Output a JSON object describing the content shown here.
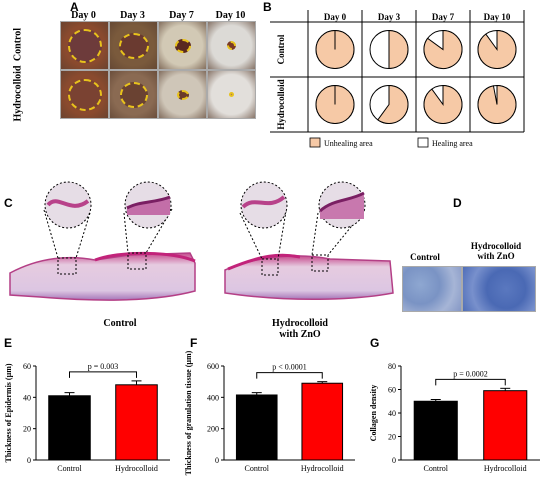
{
  "panel_letters": {
    "a": "A",
    "b": "B",
    "c": "C",
    "d": "D",
    "e": "E",
    "f": "F",
    "g": "G"
  },
  "days": [
    "Day 0",
    "Day 3",
    "Day 7",
    "Day 10"
  ],
  "groups": [
    "Control",
    "Hydrocolloid"
  ],
  "colors": {
    "unhealing": "#f6c9a6",
    "healing": "#ffffff",
    "control_bar": "#000000",
    "hydro_bar": "#ff0000",
    "dash": "#e8c21c"
  },
  "pie_unhealing_fraction": {
    "control": [
      1.0,
      0.5,
      0.85,
      0.9
    ],
    "hydrocolloid": [
      1.0,
      0.6,
      0.9,
      0.97
    ]
  },
  "legend": {
    "unhealing": "Unhealing area",
    "healing": "Healing area"
  },
  "histology": {
    "control_label": "Control",
    "hydro_label": "Hydrocolloid\nwith ZnO"
  },
  "stain": {
    "control_label": "Control",
    "hydro_label": "Hydrocolloid\nwith ZnO"
  },
  "chart_data": [
    {
      "type": "bar",
      "categories": [
        "Control",
        "Hydrocolloid"
      ],
      "values": [
        41,
        48
      ],
      "errors": [
        2,
        2.5
      ],
      "ylabel": "Thickness of Epidermis (µm)",
      "ylim": [
        0,
        60
      ],
      "yticks": [
        0,
        20,
        40,
        60
      ],
      "annotation": "p = 0.003"
    },
    {
      "type": "bar",
      "categories": [
        "Control",
        "Hydrocolloid"
      ],
      "values": [
        415,
        490
      ],
      "errors": [
        15,
        10
      ],
      "ylabel": "Thickness of granulation tissue (µm)",
      "ylim": [
        0,
        600
      ],
      "yticks": [
        0,
        200,
        400,
        600
      ],
      "annotation": "p < 0.0001"
    },
    {
      "type": "bar",
      "categories": [
        "Control",
        "Hydrocolloid"
      ],
      "values": [
        50,
        59
      ],
      "errors": [
        1.5,
        2
      ],
      "ylabel": "Collagen density",
      "ylim": [
        0,
        80
      ],
      "yticks": [
        0,
        20,
        40,
        60,
        80
      ],
      "annotation": "p = 0.0002"
    }
  ]
}
